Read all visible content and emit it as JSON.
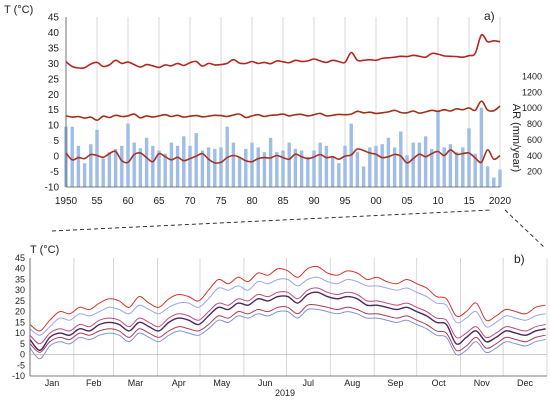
{
  "colors": {
    "tmax": "#b3261e",
    "tmean": "#9e3018",
    "tmin": "#a8321e",
    "ar_bars": "#9fbde6",
    "grid": "#cfcfcf",
    "b_max": "#d2352b",
    "b_max2": "#9aa7e6",
    "b_mean": "#4a2a5e",
    "b_mean2": "#c04a7a",
    "b_min": "#7e93d8",
    "b_min2": "#b03a55"
  },
  "chart_data": [
    {
      "panel": "a)",
      "type": "line",
      "ylabel": "T   (°C)",
      "ylabel2": "AR (mm/year)",
      "ylim": [
        -10,
        45
      ],
      "y2lim": [
        0,
        1400
      ],
      "y_ticks": [
        45,
        40,
        35,
        30,
        25,
        20,
        15,
        10,
        5,
        0,
        -5,
        -10
      ],
      "y2_ticks": [
        1400,
        1200,
        1000,
        800,
        600,
        400,
        200
      ],
      "x_ticks": [
        "1950",
        "55",
        "60",
        "65",
        "70",
        "75",
        "80",
        "85",
        "90",
        "95",
        "00",
        "05",
        "10",
        "15",
        "2020"
      ],
      "x_tick_years": [
        1950,
        1955,
        1960,
        1965,
        1970,
        1975,
        1980,
        1985,
        1990,
        1995,
        2000,
        2005,
        2010,
        2015,
        2020
      ],
      "grid": "vertical",
      "years": [
        1950,
        1951,
        1952,
        1953,
        1954,
        1955,
        1956,
        1957,
        1958,
        1959,
        1960,
        1961,
        1962,
        1963,
        1964,
        1965,
        1966,
        1967,
        1968,
        1969,
        1970,
        1971,
        1972,
        1973,
        1974,
        1975,
        1976,
        1977,
        1978,
        1979,
        1980,
        1981,
        1982,
        1983,
        1984,
        1985,
        1986,
        1987,
        1988,
        1989,
        1990,
        1991,
        1992,
        1993,
        1994,
        1995,
        1996,
        1997,
        1998,
        1999,
        2000,
        2001,
        2002,
        2003,
        2004,
        2005,
        2006,
        2007,
        2008,
        2009,
        2010,
        2011,
        2012,
        2013,
        2014,
        2015,
        2016,
        2017,
        2018,
        2019,
        2020
      ],
      "series": [
        {
          "key": "tmax",
          "values": [
            30.5,
            29.0,
            28.5,
            28.6,
            29.8,
            30.3,
            29.0,
            29.5,
            31.0,
            30.0,
            30.4,
            29.6,
            28.8,
            29.6,
            29.2,
            28.7,
            29.5,
            29.2,
            30.0,
            29.3,
            30.2,
            30.6,
            29.1,
            30.0,
            29.5,
            29.6,
            30.0,
            31.2,
            30.1,
            30.0,
            30.6,
            30.0,
            30.3,
            29.9,
            30.8,
            30.5,
            30.2,
            31.0,
            30.6,
            30.8,
            31.4,
            30.8,
            30.3,
            31.0,
            30.6,
            30.3,
            33.5,
            31.0,
            31.0,
            31.2,
            31.0,
            31.6,
            31.8,
            32.0,
            32.3,
            32.2,
            32.6,
            32.3,
            32.0,
            33.2,
            33.0,
            32.4,
            32.3,
            32.2,
            32.0,
            32.5,
            33.2,
            39.2,
            37.0,
            37.3,
            37.0
          ]
        },
        {
          "key": "tmean",
          "values": [
            13.0,
            12.6,
            12.8,
            12.3,
            12.6,
            11.6,
            12.9,
            12.5,
            13.2,
            12.8,
            13.0,
            13.6,
            12.4,
            13.0,
            12.6,
            13.0,
            13.4,
            12.8,
            13.2,
            12.6,
            12.9,
            13.1,
            12.7,
            12.9,
            13.2,
            13.1,
            12.8,
            13.3,
            13.6,
            12.5,
            13.0,
            13.4,
            12.8,
            13.2,
            13.3,
            13.6,
            13.0,
            13.4,
            13.5,
            13.0,
            13.4,
            13.8,
            13.0,
            13.2,
            13.5,
            13.4,
            13.6,
            14.5,
            14.0,
            14.2,
            13.8,
            14.0,
            14.3,
            14.8,
            14.1,
            14.0,
            14.6,
            13.9,
            14.3,
            14.8,
            14.5,
            15.0,
            14.6,
            15.3,
            15.0,
            15.6,
            14.8,
            17.8,
            14.9,
            14.7,
            16.2
          ]
        },
        {
          "key": "tmin",
          "values": [
            1.0,
            -1.2,
            -0.5,
            -0.8,
            0.5,
            0.2,
            -0.4,
            0.8,
            1.5,
            -1.5,
            -2.0,
            0.5,
            1.0,
            -0.5,
            -1.8,
            0.8,
            -0.2,
            -1.2,
            -0.4,
            -1.5,
            -0.8,
            0.0,
            0.8,
            -1.0,
            -2.2,
            -2.0,
            -0.5,
            0.2,
            -0.4,
            -1.5,
            -1.8,
            -0.8,
            -0.5,
            -0.6,
            0.2,
            -0.5,
            -1.0,
            0.6,
            -0.2,
            -0.8,
            -0.3,
            0.5,
            -0.5,
            -0.2,
            -1.0,
            0.0,
            0.4,
            2.3,
            1.8,
            1.0,
            0.6,
            -0.5,
            -0.2,
            0.5,
            0.0,
            -2.2,
            -0.8,
            0.6,
            -0.2,
            0.8,
            1.5,
            0.2,
            2.0,
            0.6,
            0.8,
            1.0,
            -0.6,
            -2.0,
            2.0,
            -1.0,
            0.2
          ]
        }
      ],
      "ar_values": [
        760,
        760,
        520,
        300,
        540,
        720,
        360,
        440,
        480,
        520,
        800,
        560,
        490,
        620,
        520,
        460,
        420,
        560,
        520,
        640,
        520,
        680,
        460,
        500,
        480,
        500,
        760,
        560,
        380,
        480,
        560,
        500,
        440,
        620,
        440,
        460,
        560,
        480,
        460,
        380,
        460,
        560,
        520,
        380,
        300,
        520,
        800,
        440,
        260,
        500,
        520,
        540,
        620,
        500,
        700,
        400,
        560,
        560,
        640,
        480,
        960,
        500,
        540,
        440,
        500,
        740,
        420,
        1000,
        260,
        120,
        220
      ]
    },
    {
      "panel": "b)",
      "type": "line",
      "ylabel": "T   (°C)",
      "ylim": [
        -10,
        45
      ],
      "y_ticks": [
        45,
        40,
        35,
        30,
        25,
        20,
        15,
        10,
        5,
        0,
        -5,
        -10
      ],
      "x_ticks": [
        "Jan",
        "Feb",
        "Mar",
        "Apr",
        "May",
        "Jun",
        "Jul",
        "Aug",
        "Sep",
        "Oct",
        "Nov",
        "Dec"
      ],
      "xlabel": "2019",
      "grid": "vertical",
      "week_days": [
        0,
        7,
        14,
        21,
        28,
        35,
        42,
        49,
        56,
        63,
        70,
        77,
        84,
        91,
        98,
        105,
        112,
        119,
        126,
        133,
        140,
        147,
        154,
        161,
        168,
        175,
        182,
        189,
        196,
        203,
        210,
        217,
        224,
        231,
        238,
        245,
        252,
        259,
        266,
        273,
        280,
        287,
        294,
        301,
        308,
        315,
        322,
        329,
        336,
        343,
        350,
        357,
        364
      ],
      "series": [
        {
          "key": "b_max",
          "values": [
            14,
            11,
            16,
            20,
            19,
            22,
            21,
            24,
            26,
            25,
            22,
            27,
            24,
            22,
            26,
            28,
            27,
            25,
            30,
            35,
            33,
            36,
            34,
            38,
            37,
            40,
            39,
            36,
            40,
            41,
            38,
            37,
            39,
            38,
            35,
            36,
            34,
            33,
            35,
            33,
            31,
            27,
            26,
            18,
            20,
            24,
            16,
            18,
            21,
            20,
            19,
            22,
            23
          ]
        },
        {
          "key": "b_max2",
          "values": [
            12,
            9,
            13,
            17,
            16,
            19,
            18,
            20,
            22,
            21,
            19,
            23,
            21,
            19,
            22,
            24,
            24,
            22,
            26,
            31,
            30,
            32,
            30,
            34,
            33,
            35,
            35,
            32,
            35,
            36,
            34,
            33,
            35,
            34,
            32,
            32,
            31,
            30,
            31,
            29,
            27,
            24,
            23,
            15,
            17,
            20,
            13,
            15,
            18,
            17,
            16,
            18,
            19
          ]
        },
        {
          "key": "b_mean",
          "values": [
            7,
            2,
            8,
            10,
            9,
            12,
            11,
            14,
            15,
            14,
            11,
            15,
            13,
            11,
            15,
            17,
            16,
            14,
            18,
            22,
            21,
            24,
            23,
            26,
            25,
            27,
            27,
            24,
            28,
            29,
            27,
            26,
            27,
            26,
            23,
            23,
            22,
            21,
            22,
            20,
            18,
            15,
            14,
            5,
            8,
            11,
            6,
            8,
            11,
            10,
            9,
            11,
            12
          ]
        },
        {
          "key": "b_mean2",
          "values": [
            9,
            5,
            10,
            12,
            11,
            14,
            13,
            16,
            17,
            16,
            13,
            17,
            15,
            13,
            17,
            19,
            18,
            16,
            20,
            24,
            23,
            26,
            25,
            28,
            27,
            29,
            29,
            26,
            30,
            31,
            29,
            28,
            29,
            28,
            25,
            25,
            24,
            23,
            24,
            22,
            20,
            17,
            16,
            8,
            10,
            13,
            8,
            10,
            13,
            12,
            11,
            13,
            14
          ]
        },
        {
          "key": "b_min",
          "values": [
            3,
            -2,
            4,
            6,
            5,
            8,
            7,
            9,
            10,
            9,
            6,
            10,
            8,
            6,
            9,
            11,
            10,
            9,
            12,
            16,
            15,
            18,
            17,
            19,
            18,
            20,
            20,
            17,
            21,
            21,
            20,
            19,
            20,
            19,
            17,
            17,
            16,
            15,
            16,
            14,
            12,
            9,
            8,
            0,
            2,
            6,
            1,
            3,
            6,
            5,
            4,
            6,
            7
          ]
        },
        {
          "key": "b_min2",
          "values": [
            5,
            1,
            6,
            8,
            7,
            10,
            9,
            11,
            12,
            11,
            8,
            12,
            10,
            8,
            11,
            13,
            12,
            11,
            14,
            18,
            17,
            20,
            19,
            21,
            20,
            22,
            22,
            19,
            23,
            23,
            22,
            21,
            22,
            21,
            19,
            19,
            18,
            17,
            18,
            16,
            14,
            11,
            10,
            2,
            4,
            8,
            3,
            5,
            8,
            7,
            6,
            8,
            9
          ]
        }
      ]
    }
  ]
}
